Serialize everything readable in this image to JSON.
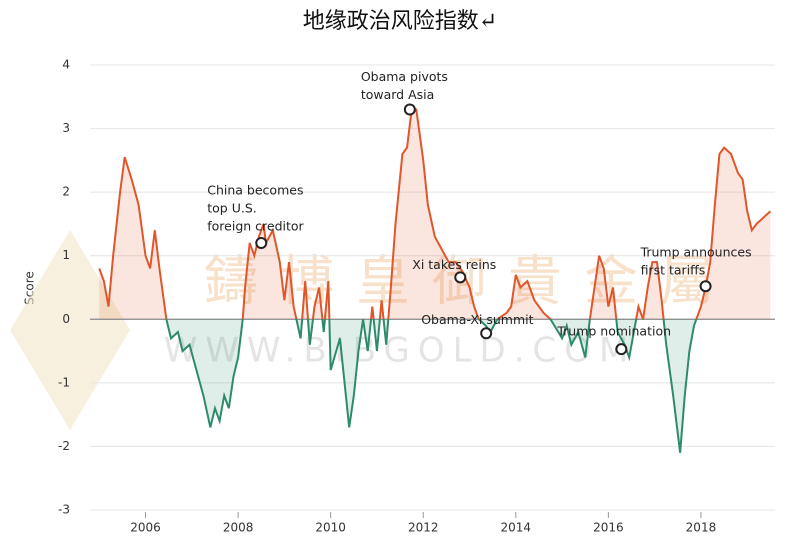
{
  "chart_data": {
    "type": "line",
    "title": "地缘政治风险指数↵",
    "y_label": "Score",
    "watermark": [
      "鑄博皇御貴金屬",
      "WWW.BIBGOLD.COM"
    ],
    "x": [
      2005.0,
      2005.1,
      2005.2,
      2005.3,
      2005.45,
      2005.55,
      2005.7,
      2005.85,
      2006.0,
      2006.1,
      2006.2,
      2006.3,
      2006.45,
      2006.55,
      2006.7,
      2006.8,
      2006.95,
      2007.1,
      2007.25,
      2007.4,
      2007.5,
      2007.6,
      2007.7,
      2007.8,
      2007.9,
      2008.0,
      2008.1,
      2008.15,
      2008.25,
      2008.35,
      2008.45,
      2008.55,
      2008.6,
      2008.75,
      2008.9,
      2009.0,
      2009.1,
      2009.2,
      2009.35,
      2009.45,
      2009.55,
      2009.65,
      2009.75,
      2009.85,
      2009.95,
      2010.0,
      2010.2,
      2010.3,
      2010.4,
      2010.5,
      2010.6,
      2010.7,
      2010.8,
      2010.9,
      2011.0,
      2011.1,
      2011.2,
      2011.3,
      2011.4,
      2011.55,
      2011.65,
      2011.75,
      2011.85,
      2012.0,
      2012.1,
      2012.25,
      2012.4,
      2012.55,
      2012.7,
      2012.85,
      2013.0,
      2013.1,
      2013.2,
      2013.35,
      2013.45,
      2013.6,
      2013.8,
      2013.9,
      2014.0,
      2014.1,
      2014.25,
      2014.4,
      2014.5,
      2014.6,
      2014.75,
      2015.0,
      2015.1,
      2015.2,
      2015.35,
      2015.5,
      2015.6,
      2015.7,
      2015.8,
      2015.9,
      2016.0,
      2016.1,
      2016.2,
      2016.35,
      2016.45,
      2016.55,
      2016.65,
      2016.75,
      2016.85,
      2016.95,
      2017.05,
      2017.15,
      2017.25,
      2017.4,
      2017.5,
      2017.55,
      2017.65,
      2017.75,
      2017.85,
      2018.0,
      2018.1,
      2018.2,
      2018.3,
      2018.4,
      2018.5,
      2018.65,
      2018.8,
      2018.9,
      2019.0,
      2019.1,
      2019.2,
      2019.35,
      2019.5
    ],
    "series": [
      {
        "name": "Score",
        "color_pos": "#e0562a",
        "color_neg": "#2e8b6a",
        "values": [
          0.8,
          0.6,
          0.2,
          1.0,
          2.0,
          2.55,
          2.2,
          1.8,
          1.0,
          0.8,
          1.4,
          0.8,
          0.0,
          -0.3,
          -0.2,
          -0.5,
          -0.4,
          -0.8,
          -1.2,
          -1.7,
          -1.4,
          -1.6,
          -1.2,
          -1.4,
          -0.9,
          -0.6,
          0.0,
          0.5,
          1.2,
          1.0,
          1.3,
          1.5,
          1.2,
          1.4,
          0.9,
          0.3,
          0.9,
          0.2,
          -0.3,
          0.6,
          -0.4,
          0.2,
          0.5,
          -0.2,
          0.6,
          -0.8,
          -0.3,
          -1.0,
          -1.7,
          -1.2,
          -0.5,
          0.0,
          -0.5,
          0.2,
          -0.5,
          0.3,
          -0.4,
          0.5,
          1.5,
          2.6,
          2.7,
          3.3,
          3.3,
          2.5,
          1.8,
          1.3,
          1.1,
          0.9,
          0.9,
          0.75,
          0.5,
          0.2,
          0.0,
          -0.1,
          -0.2,
          0.0,
          0.1,
          0.2,
          0.7,
          0.5,
          0.6,
          0.3,
          0.2,
          0.1,
          0.0,
          -0.3,
          -0.1,
          -0.4,
          -0.2,
          -0.6,
          0.0,
          0.5,
          1.0,
          0.8,
          0.2,
          0.5,
          -0.2,
          -0.4,
          -0.6,
          -0.2,
          0.2,
          0.0,
          0.5,
          0.9,
          0.9,
          0.3,
          -0.4,
          -1.2,
          -1.8,
          -2.1,
          -1.2,
          -0.5,
          -0.1,
          0.2,
          0.5,
          0.9,
          1.8,
          2.6,
          2.7,
          2.6,
          2.3,
          2.2,
          1.7,
          1.4,
          1.5,
          1.6,
          1.7
        ]
      }
    ],
    "annotations": [
      {
        "lines": [
          "China becomes",
          "top U.S.",
          "foreign creditor"
        ],
        "x": 2008.5,
        "y": 1.2
      },
      {
        "lines": [
          "Obama pivots",
          "toward Asia"
        ],
        "x": 2011.71,
        "y": 3.3
      },
      {
        "lines": [
          "Xi takes reins"
        ],
        "x": 2012.8,
        "y": 0.66
      },
      {
        "lines": [
          "Obama-Xi summit"
        ],
        "x": 2013.36,
        "y": -0.22
      },
      {
        "lines": [
          "Trump nomination"
        ],
        "x": 2016.28,
        "y": -0.47
      },
      {
        "lines": [
          "Trump announces",
          "first tariffs"
        ],
        "x": 2018.1,
        "y": 0.52
      }
    ],
    "xlim": [
      2004.8,
      2019.6
    ],
    "xticks": [
      2006,
      2008,
      2010,
      2012,
      2014,
      2016,
      2018
    ],
    "ylim": [
      -3,
      4
    ],
    "yticks": [
      -3,
      -2,
      -1,
      0,
      1,
      2,
      3,
      4
    ],
    "grid": true
  }
}
